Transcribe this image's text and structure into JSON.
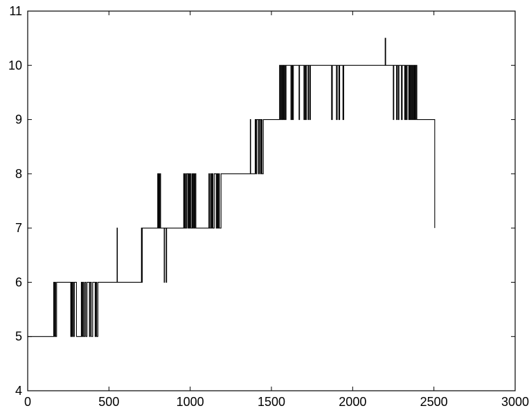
{
  "chart_data": {
    "type": "line",
    "title": "",
    "xlabel": "",
    "ylabel": "",
    "xlim": [
      0,
      3000
    ],
    "ylim": [
      4,
      11
    ],
    "grid": false,
    "legend": "none",
    "x_ticks": [
      0,
      500,
      1000,
      1500,
      2000,
      2500,
      3000
    ],
    "y_ticks": [
      4,
      5,
      6,
      7,
      8,
      9,
      10,
      11
    ],
    "x_tick_labels": [
      "0",
      "500",
      "1000",
      "1500",
      "2000",
      "2500",
      "3000"
    ],
    "y_tick_labels": [
      "4",
      "5",
      "6",
      "7",
      "8",
      "9",
      "10",
      "11"
    ],
    "series": [
      {
        "color": "#000000",
        "steps": [
          [
            0,
            5
          ],
          [
            160,
            6
          ],
          [
            165,
            5
          ],
          [
            170,
            6
          ],
          [
            172,
            5
          ],
          [
            178,
            6
          ],
          [
            265,
            5
          ],
          [
            268,
            6
          ],
          [
            272,
            5
          ],
          [
            276,
            6
          ],
          [
            282,
            5
          ],
          [
            287,
            6
          ],
          [
            300,
            5
          ],
          [
            330,
            6
          ],
          [
            335,
            5
          ],
          [
            340,
            6
          ],
          [
            345,
            5
          ],
          [
            352,
            6
          ],
          [
            358,
            5
          ],
          [
            365,
            6
          ],
          [
            380,
            5
          ],
          [
            385,
            6
          ],
          [
            392,
            5
          ],
          [
            400,
            6
          ],
          [
            415,
            5
          ],
          [
            420,
            6
          ],
          [
            425,
            5
          ],
          [
            432,
            6
          ],
          [
            550,
            7
          ],
          [
            552,
            6
          ],
          [
            700,
            7
          ],
          [
            702,
            6
          ],
          [
            705,
            7
          ],
          [
            800,
            8
          ],
          [
            803,
            7
          ],
          [
            806,
            8
          ],
          [
            810,
            7
          ],
          [
            815,
            8
          ],
          [
            818,
            7
          ],
          [
            840,
            6
          ],
          [
            842,
            7
          ],
          [
            852,
            6
          ],
          [
            855,
            7
          ],
          [
            960,
            8
          ],
          [
            963,
            7
          ],
          [
            968,
            8
          ],
          [
            972,
            7
          ],
          [
            978,
            8
          ],
          [
            985,
            7
          ],
          [
            990,
            8
          ],
          [
            995,
            7
          ],
          [
            1000,
            8
          ],
          [
            1005,
            7
          ],
          [
            1012,
            8
          ],
          [
            1015,
            7
          ],
          [
            1020,
            8
          ],
          [
            1025,
            7
          ],
          [
            1030,
            8
          ],
          [
            1035,
            7
          ],
          [
            1115,
            8
          ],
          [
            1118,
            7
          ],
          [
            1125,
            8
          ],
          [
            1130,
            7
          ],
          [
            1135,
            8
          ],
          [
            1140,
            7
          ],
          [
            1148,
            8
          ],
          [
            1160,
            7
          ],
          [
            1165,
            8
          ],
          [
            1170,
            7
          ],
          [
            1175,
            8
          ],
          [
            1180,
            7
          ],
          [
            1190,
            8
          ],
          [
            1370,
            9
          ],
          [
            1372,
            8
          ],
          [
            1400,
            9
          ],
          [
            1405,
            8
          ],
          [
            1410,
            9
          ],
          [
            1420,
            8
          ],
          [
            1425,
            9
          ],
          [
            1432,
            8
          ],
          [
            1437,
            9
          ],
          [
            1442,
            8
          ],
          [
            1450,
            9
          ],
          [
            1550,
            10
          ],
          [
            1555,
            9
          ],
          [
            1560,
            10
          ],
          [
            1565,
            9
          ],
          [
            1570,
            10
          ],
          [
            1575,
            9
          ],
          [
            1580,
            10
          ],
          [
            1585,
            9
          ],
          [
            1590,
            10
          ],
          [
            1620,
            9
          ],
          [
            1625,
            10
          ],
          [
            1630,
            9
          ],
          [
            1635,
            10
          ],
          [
            1670,
            9
          ],
          [
            1673,
            10
          ],
          [
            1700,
            9
          ],
          [
            1705,
            10
          ],
          [
            1710,
            9
          ],
          [
            1715,
            10
          ],
          [
            1725,
            9
          ],
          [
            1728,
            10
          ],
          [
            1735,
            9
          ],
          [
            1740,
            10
          ],
          [
            1870,
            9
          ],
          [
            1875,
            10
          ],
          [
            1900,
            9
          ],
          [
            1905,
            10
          ],
          [
            1915,
            9
          ],
          [
            1920,
            10
          ],
          [
            1940,
            9
          ],
          [
            1945,
            10
          ],
          [
            2200,
            10.5
          ],
          [
            2203,
            10
          ],
          [
            2250,
            9
          ],
          [
            2253,
            10
          ],
          [
            2270,
            9
          ],
          [
            2273,
            10
          ],
          [
            2280,
            9
          ],
          [
            2285,
            10
          ],
          [
            2300,
            9
          ],
          [
            2305,
            10
          ],
          [
            2320,
            9
          ],
          [
            2325,
            10
          ],
          [
            2330,
            9
          ],
          [
            2335,
            10
          ],
          [
            2345,
            9
          ],
          [
            2350,
            10
          ],
          [
            2355,
            9
          ],
          [
            2360,
            10
          ],
          [
            2365,
            9
          ],
          [
            2370,
            10
          ],
          [
            2375,
            9
          ],
          [
            2380,
            10
          ],
          [
            2385,
            9
          ],
          [
            2390,
            10
          ],
          [
            2395,
            9
          ],
          [
            2500,
            9
          ]
        ],
        "end": [
          2505,
          7
        ]
      }
    ]
  }
}
